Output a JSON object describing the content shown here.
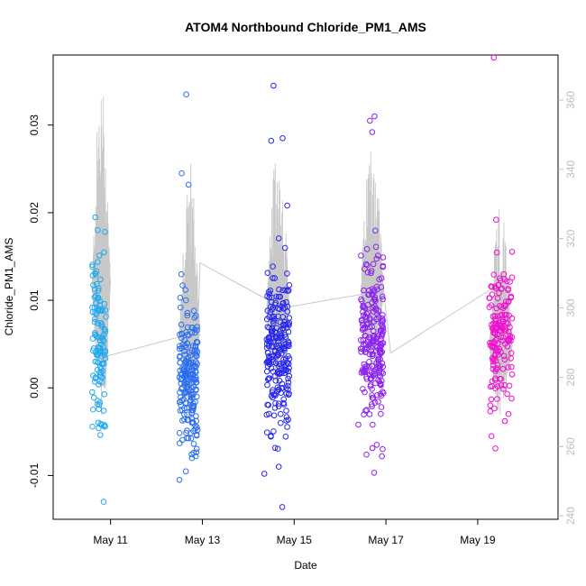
{
  "chart_data": {
    "type": "scatter",
    "title": "ATOM4 Northbound Chloride_PM1_AMS",
    "xlabel": "Date",
    "ylabel": "Chloride_PM1_AMS",
    "xlim": [
      9.75,
      20.75
    ],
    "ylim": [
      -0.015,
      0.038
    ],
    "y2lim": [
      239,
      373
    ],
    "x_ticks": [
      {
        "value": 11,
        "label": "May 11"
      },
      {
        "value": 13,
        "label": "May 13"
      },
      {
        "value": 15,
        "label": "May 15"
      },
      {
        "value": 17,
        "label": "May 17"
      },
      {
        "value": 19,
        "label": "May 19"
      }
    ],
    "y_ticks": [
      {
        "value": -0.01,
        "label": "-0.01"
      },
      {
        "value": 0.0,
        "label": "0.00"
      },
      {
        "value": 0.01,
        "label": "0.01"
      },
      {
        "value": 0.02,
        "label": "0.02"
      },
      {
        "value": 0.03,
        "label": "0.03"
      }
    ],
    "y2_ticks": [
      {
        "value": 240,
        "label": "240"
      },
      {
        "value": 260,
        "label": "260"
      },
      {
        "value": 280,
        "label": "280"
      },
      {
        "value": 300,
        "label": "300"
      },
      {
        "value": 320,
        "label": "320"
      },
      {
        "value": 340,
        "label": "340"
      },
      {
        "value": 360,
        "label": "360"
      }
    ],
    "clusters": [
      {
        "x_start": 10.6,
        "x_end": 10.9,
        "color": "#1fa9ef",
        "n": 120,
        "mean": 0.005,
        "sd": 0.0045,
        "outliers": [
          [
            10.85,
            -0.013
          ],
          [
            10.72,
            0.018
          ],
          [
            10.88,
            0.0178
          ]
        ]
      },
      {
        "x_start": 12.5,
        "x_end": 12.9,
        "color": "#2b6ef0",
        "n": 200,
        "mean": 0.001,
        "sd": 0.004,
        "outliers": [
          [
            12.65,
            0.0335
          ],
          [
            12.55,
            0.0245
          ],
          [
            12.5,
            -0.0105
          ],
          [
            12.7,
            0.0232
          ]
        ]
      },
      {
        "x_start": 14.4,
        "x_end": 14.9,
        "color": "#2626ee",
        "n": 230,
        "mean": 0.0045,
        "sd": 0.0045,
        "outliers": [
          [
            14.55,
            0.0345
          ],
          [
            14.75,
            0.0285
          ],
          [
            14.5,
            0.0282
          ],
          [
            14.35,
            -0.0098
          ],
          [
            14.85,
            0.0208
          ]
        ]
      },
      {
        "x_start": 16.45,
        "x_end": 16.95,
        "color": "#8a22ee",
        "n": 230,
        "mean": 0.0055,
        "sd": 0.0045,
        "outliers": [
          [
            16.75,
            0.031
          ],
          [
            16.65,
            0.0305
          ],
          [
            16.7,
            0.0292
          ],
          [
            16.8,
            -0.0065
          ],
          [
            16.4,
            -0.0042
          ]
        ]
      },
      {
        "x_start": 19.25,
        "x_end": 19.75,
        "color": "#f00fcf",
        "n": 160,
        "mean": 0.006,
        "sd": 0.004,
        "outliers": [
          [
            19.35,
            0.0377
          ],
          [
            19.3,
            -0.0055
          ],
          [
            19.4,
            0.0192
          ]
        ]
      }
    ],
    "secondary_series": {
      "color": "#c8c8c8",
      "baseline": [
        [
          10.6,
          285
        ],
        [
          12.9,
          293
        ],
        [
          12.95,
          313
        ],
        [
          14.75,
          300
        ],
        [
          16.95,
          305
        ],
        [
          17.1,
          287
        ],
        [
          19.6,
          308
        ],
        [
          19.75,
          303
        ]
      ],
      "bursts": [
        {
          "x_start": 10.6,
          "x_end": 11.0,
          "lo": 265,
          "hi": 368
        },
        {
          "x_start": 12.5,
          "x_end": 12.95,
          "lo": 265,
          "hi": 343
        },
        {
          "x_start": 14.4,
          "x_end": 14.9,
          "lo": 272,
          "hi": 348
        },
        {
          "x_start": 16.45,
          "x_end": 16.95,
          "lo": 278,
          "hi": 352
        },
        {
          "x_start": 19.25,
          "x_end": 19.75,
          "lo": 268,
          "hi": 330
        }
      ]
    }
  }
}
